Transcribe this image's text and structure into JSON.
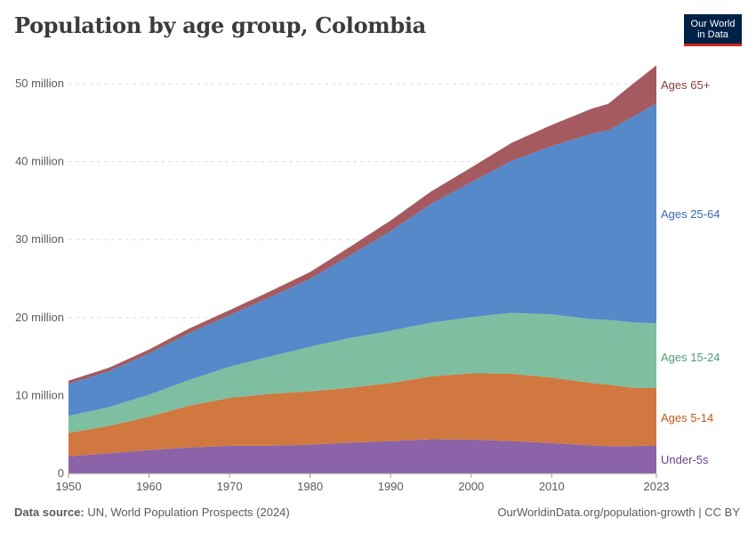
{
  "header": {
    "title": "Population by age group, Colombia",
    "logo_line1": "Our World",
    "logo_line2": "in Data"
  },
  "footer": {
    "source_label": "Data source:",
    "source_text": "UN, World Population Prospects (2024)",
    "url_text": "OurWorldinData.org/population-growth | CC BY"
  },
  "chart_data": {
    "type": "area",
    "stacked": true,
    "title": "Population by age group, Colombia",
    "xlim": [
      1950,
      2023
    ],
    "ylim": [
      0,
      52000000
    ],
    "x_ticks": [
      {
        "value": 1950,
        "label": "1950"
      },
      {
        "value": 1960,
        "label": "1960"
      },
      {
        "value": 1970,
        "label": "1970"
      },
      {
        "value": 1980,
        "label": "1980"
      },
      {
        "value": 1990,
        "label": "1990"
      },
      {
        "value": 2000,
        "label": "2000"
      },
      {
        "value": 2010,
        "label": "2010"
      },
      {
        "value": 2023,
        "label": "2023"
      }
    ],
    "y_ticks": [
      {
        "value": 0,
        "label": "0"
      },
      {
        "value": 10000000,
        "label": "10 million"
      },
      {
        "value": 20000000,
        "label": "20 million"
      },
      {
        "value": 30000000,
        "label": "30 million"
      },
      {
        "value": 40000000,
        "label": "40 million"
      },
      {
        "value": 50000000,
        "label": "50 million"
      }
    ],
    "grid": "horizontal dashed",
    "legend": "inline labels at right end",
    "x": [
      1950,
      1955,
      1960,
      1965,
      1970,
      1975,
      1980,
      1985,
      1990,
      1995,
      2000,
      2005,
      2010,
      2015,
      2017,
      2020,
      2023
    ],
    "series": [
      {
        "name": "Under-5s",
        "color": "#8c63a8",
        "label_color": "#6d3e91",
        "values": [
          2200000,
          2600000,
          3000000,
          3350000,
          3550000,
          3550000,
          3700000,
          3950000,
          4150000,
          4400000,
          4350000,
          4150000,
          3900000,
          3600000,
          3500000,
          3500000,
          3600000
        ]
      },
      {
        "name": "Ages 5-14",
        "color": "#d0783f",
        "label_color": "#c05917",
        "values": [
          3000000,
          3500000,
          4300000,
          5350000,
          6150000,
          6650000,
          6850000,
          7050000,
          7450000,
          8050000,
          8500000,
          8650000,
          8400000,
          8000000,
          7900000,
          7500000,
          7350000
        ]
      },
      {
        "name": "Ages 15-24",
        "color": "#7dbfa0",
        "label_color": "#4c9c72",
        "values": [
          2200000,
          2400000,
          2800000,
          3300000,
          4000000,
          4800000,
          5700000,
          6400000,
          6700000,
          6900000,
          7200000,
          7800000,
          8100000,
          8200000,
          8300000,
          8400000,
          8300000
        ]
      },
      {
        "name": "Ages 25-64",
        "color": "#5589c9",
        "label_color": "#3769b1",
        "values": [
          4100000,
          4600000,
          5300000,
          6000000,
          6600000,
          7600000,
          8700000,
          10600000,
          12800000,
          15200000,
          17300000,
          19500000,
          21600000,
          23800000,
          24300000,
          26300000,
          28200000
        ]
      },
      {
        "name": "Ages 65+",
        "color": "#a55a5f",
        "label_color": "#8b3b40",
        "values": [
          400000,
          450000,
          500000,
          600000,
          650000,
          750000,
          900000,
          1100000,
          1350000,
          1600000,
          1900000,
          2300000,
          2700000,
          3200000,
          3400000,
          4200000,
          4900000
        ]
      }
    ]
  }
}
